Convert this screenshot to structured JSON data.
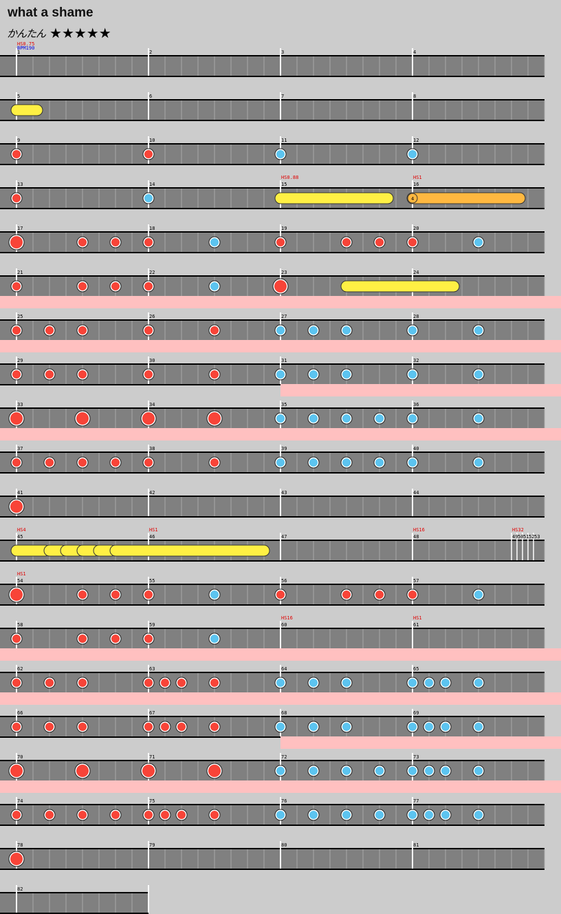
{
  "song": {
    "title": "what a shame"
  },
  "difficulty": {
    "label": "かんたん",
    "stars": "★★★★★"
  },
  "colors": {
    "background": "#cccccc",
    "lane": "#808080",
    "lane_line": "#000000",
    "beat_line": "#ffffff",
    "gogo": "#ffc0c0",
    "don": "#f84438",
    "ka": "#5cc4f0",
    "drumroll": "#fff044",
    "balloon": "#ffb840",
    "label_black": "#000000",
    "label_red": "#e00000",
    "label_blue": "#0000e0"
  },
  "chart_data": {
    "type": "table",
    "bpm_label": "BPM190",
    "rows": [
      {
        "notes": [],
        "measures": [
          1,
          2,
          3,
          4
        ],
        "annotations": [
          {
            "text": "HS0.75",
            "color": "red",
            "pos": 0
          },
          {
            "text": "BPM190",
            "color": "blue",
            "pos": 0
          }
        ]
      },
      {
        "notes": [
          [
            "roll",
            0,
            1.25
          ]
        ],
        "measures": [
          5,
          6,
          7,
          8
        ]
      },
      {
        "notes": [
          [
            "d",
            0
          ],
          [
            "d",
            8
          ],
          [
            "k",
            16
          ],
          [
            "k",
            24
          ]
        ],
        "measures": [
          9,
          10,
          11,
          12
        ]
      },
      {
        "notes": [
          [
            "d",
            0
          ],
          [
            "k",
            8
          ],
          [
            "roll",
            16,
            22.5
          ],
          [
            "balloon",
            24,
            30.5,
            "4"
          ]
        ],
        "measures": [
          13,
          14,
          15,
          16
        ],
        "annotations": [
          {
            "text": "HS0.88",
            "color": "red",
            "pos": 16
          },
          {
            "text": "HS1",
            "color": "red",
            "pos": 24
          }
        ]
      },
      {
        "notes": [
          [
            "D",
            0
          ],
          [
            "d",
            4
          ],
          [
            "d",
            6
          ],
          [
            "d",
            8
          ],
          [
            "k",
            12
          ],
          [
            "d",
            16
          ],
          [
            "d",
            20
          ],
          [
            "d",
            22
          ],
          [
            "d",
            24
          ],
          [
            "k",
            28
          ]
        ],
        "measures": [
          17,
          18,
          19,
          20
        ]
      },
      {
        "notes": [
          [
            "d",
            0
          ],
          [
            "d",
            4
          ],
          [
            "d",
            6
          ],
          [
            "d",
            8
          ],
          [
            "k",
            12
          ],
          [
            "D",
            16
          ],
          [
            "roll",
            20,
            26.5
          ]
        ],
        "measures": [
          21,
          22,
          23,
          24
        ]
      },
      {
        "gogo": [
          [
            0,
            32
          ]
        ],
        "notes": [
          [
            "d",
            0
          ],
          [
            "d",
            2
          ],
          [
            "d",
            4
          ],
          [
            "d",
            8
          ],
          [
            "d",
            12
          ],
          [
            "k",
            16
          ],
          [
            "k",
            18
          ],
          [
            "k",
            20
          ],
          [
            "k",
            24
          ],
          [
            "k",
            28
          ]
        ],
        "measures": [
          25,
          26,
          27,
          28
        ]
      },
      {
        "gogo": [
          [
            0,
            32
          ]
        ],
        "notes": [
          [
            "d",
            0
          ],
          [
            "d",
            2
          ],
          [
            "d",
            4
          ],
          [
            "d",
            8
          ],
          [
            "d",
            12
          ],
          [
            "k",
            16
          ],
          [
            "k",
            18
          ],
          [
            "k",
            20
          ],
          [
            "k",
            24
          ],
          [
            "k",
            28
          ]
        ],
        "measures": [
          29,
          30,
          31,
          32
        ]
      },
      {
        "gogo": [
          [
            16,
            32
          ]
        ],
        "notes": [
          [
            "D",
            0
          ],
          [
            "D",
            4
          ],
          [
            "D",
            8
          ],
          [
            "D",
            12
          ],
          [
            "k",
            16
          ],
          [
            "k",
            18
          ],
          [
            "k",
            20
          ],
          [
            "k",
            22
          ],
          [
            "k",
            24
          ],
          [
            "k",
            28
          ]
        ],
        "measures": [
          33,
          34,
          35,
          36
        ]
      },
      {
        "gogo": [
          [
            0,
            32
          ]
        ],
        "notes": [
          [
            "d",
            0
          ],
          [
            "d",
            2
          ],
          [
            "d",
            4
          ],
          [
            "d",
            6
          ],
          [
            "d",
            8
          ],
          [
            "d",
            12
          ],
          [
            "k",
            16
          ],
          [
            "k",
            18
          ],
          [
            "k",
            20
          ],
          [
            "k",
            22
          ],
          [
            "k",
            24
          ],
          [
            "k",
            28
          ]
        ],
        "measures": [
          37,
          38,
          39,
          40
        ]
      },
      {
        "notes": [
          [
            "D",
            0
          ]
        ],
        "measures": [
          41,
          42,
          43,
          44
        ]
      },
      {
        "notes": [
          [
            "roll",
            0,
            1.75
          ],
          [
            "roll",
            2,
            2.75
          ],
          [
            "roll",
            3,
            3.75
          ],
          [
            "roll",
            4,
            4.75
          ],
          [
            "roll",
            5,
            5.75
          ],
          [
            "roll",
            6,
            15
          ]
        ],
        "measures": [
          45,
          46,
          47,
          48
        ],
        "annotations": [
          {
            "text": "HS4",
            "color": "red",
            "pos": 0
          },
          {
            "text": "HS1",
            "color": "red",
            "pos": 8
          },
          {
            "text": "HS16",
            "color": "red",
            "pos": 24
          },
          {
            "text": "HS32",
            "color": "red",
            "pos": 30
          }
        ],
        "extra_measures": [
          "49",
          "50",
          "51",
          "52",
          "53"
        ]
      },
      {
        "notes": [
          [
            "D",
            0
          ],
          [
            "d",
            4
          ],
          [
            "d",
            6
          ],
          [
            "d",
            8
          ],
          [
            "k",
            12
          ],
          [
            "d",
            16
          ],
          [
            "d",
            20
          ],
          [
            "d",
            22
          ],
          [
            "d",
            24
          ],
          [
            "k",
            28
          ]
        ],
        "measures": [
          54,
          55,
          56,
          57
        ],
        "annotations": [
          {
            "text": "HS1",
            "color": "red",
            "pos": 0
          }
        ]
      },
      {
        "notes": [
          [
            "d",
            0
          ],
          [
            "d",
            4
          ],
          [
            "d",
            6
          ],
          [
            "d",
            8
          ],
          [
            "k",
            12
          ]
        ],
        "measures": [
          58,
          59,
          60,
          61
        ],
        "annotations": [
          {
            "text": "HS16",
            "color": "red",
            "pos": 16
          },
          {
            "text": "HS1",
            "color": "red",
            "pos": 24
          }
        ]
      },
      {
        "gogo": [
          [
            0,
            32
          ]
        ],
        "notes": [
          [
            "d",
            0
          ],
          [
            "d",
            2
          ],
          [
            "d",
            4
          ],
          [
            "d",
            8
          ],
          [
            "d",
            9
          ],
          [
            "d",
            10
          ],
          [
            "d",
            12
          ],
          [
            "k",
            16
          ],
          [
            "k",
            18
          ],
          [
            "k",
            20
          ],
          [
            "k",
            24
          ],
          [
            "k",
            25
          ],
          [
            "k",
            26
          ],
          [
            "k",
            28
          ]
        ],
        "measures": [
          62,
          63,
          64,
          65
        ]
      },
      {
        "gogo": [
          [
            0,
            32
          ]
        ],
        "notes": [
          [
            "d",
            0
          ],
          [
            "d",
            2
          ],
          [
            "d",
            4
          ],
          [
            "d",
            8
          ],
          [
            "d",
            9
          ],
          [
            "d",
            10
          ],
          [
            "d",
            12
          ],
          [
            "k",
            16
          ],
          [
            "k",
            18
          ],
          [
            "k",
            20
          ],
          [
            "k",
            24
          ],
          [
            "k",
            25
          ],
          [
            "k",
            26
          ],
          [
            "k",
            28
          ]
        ],
        "measures": [
          66,
          67,
          68,
          69
        ]
      },
      {
        "gogo": [
          [
            16,
            32
          ]
        ],
        "notes": [
          [
            "D",
            0
          ],
          [
            "D",
            4
          ],
          [
            "D",
            8
          ],
          [
            "D",
            12
          ],
          [
            "k",
            16
          ],
          [
            "k",
            18
          ],
          [
            "k",
            20
          ],
          [
            "k",
            22
          ],
          [
            "k",
            24
          ],
          [
            "k",
            25
          ],
          [
            "k",
            26
          ],
          [
            "k",
            28
          ]
        ],
        "measures": [
          70,
          71,
          72,
          73
        ]
      },
      {
        "gogo": [
          [
            0,
            32
          ]
        ],
        "notes": [
          [
            "d",
            0
          ],
          [
            "d",
            2
          ],
          [
            "d",
            4
          ],
          [
            "d",
            6
          ],
          [
            "d",
            8
          ],
          [
            "d",
            9
          ],
          [
            "d",
            10
          ],
          [
            "d",
            12
          ],
          [
            "k",
            16
          ],
          [
            "k",
            18
          ],
          [
            "k",
            20
          ],
          [
            "k",
            22
          ],
          [
            "k",
            24
          ],
          [
            "k",
            25
          ],
          [
            "k",
            26
          ],
          [
            "k",
            28
          ]
        ],
        "measures": [
          74,
          75,
          76,
          77
        ]
      },
      {
        "notes": [
          [
            "D",
            0
          ]
        ],
        "measures": [
          78,
          79,
          80,
          81
        ]
      },
      {
        "notes": [],
        "measures": [
          82
        ],
        "beats": 9
      }
    ]
  }
}
